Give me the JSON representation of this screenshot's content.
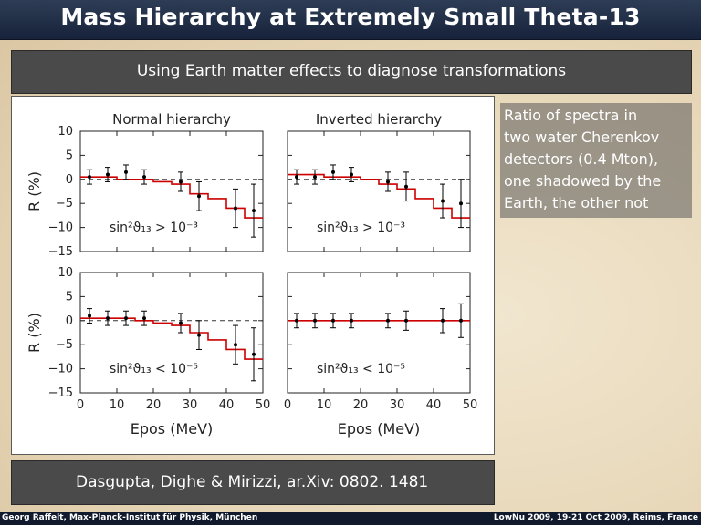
{
  "header": {
    "title": "Mass Hierarchy at Extremely Small Theta-13"
  },
  "subheader": {
    "text": "Using Earth matter effects to diagnose transformations"
  },
  "side_note": {
    "lines": [
      "Ratio of spectra in",
      "two water Cherenkov",
      "detectors (0.4 Mton),",
      "one shadowed by the",
      "Earth, the other not"
    ]
  },
  "citation": "Dasgupta, Dighe & Mirizzi, ar.Xiv: 0802. 1481",
  "footer": {
    "left": "Georg Raffelt, Max-Planck-Institut für Physik, München",
    "right": "LowNu 2009, 19-21 Oct 2009, Reims, France"
  },
  "colors": {
    "model": "#cc0000",
    "data": "#000000",
    "title_bar": "#1c2a44",
    "text_box": "#4a4a4a"
  },
  "chart_data": [
    {
      "type": "line",
      "title": "Normal hierarchy",
      "ylabel": "R (%)",
      "xlabel": "",
      "annotation": "sin²ϑ₁₃ > 10⁻³",
      "xlim": [
        0,
        50
      ],
      "ylim": [
        -15,
        10
      ],
      "xticks": [
        "0",
        "10",
        "20",
        "30",
        "40",
        "50"
      ],
      "yticks": [
        "10",
        "5",
        "0",
        "−5",
        "−10",
        "−15"
      ],
      "model": {
        "x": [
          0,
          5,
          10,
          15,
          20,
          25,
          30,
          35,
          40,
          45,
          50
        ],
        "y": [
          0.5,
          0.5,
          0,
          0,
          -0.5,
          -1,
          -3,
          -4,
          -6,
          -8,
          -8
        ]
      },
      "points": [
        {
          "x": 2.5,
          "y": 0.5,
          "err": 1.5
        },
        {
          "x": 7.5,
          "y": 1.0,
          "err": 1.5
        },
        {
          "x": 12.5,
          "y": 1.5,
          "err": 1.5
        },
        {
          "x": 17.5,
          "y": 0.5,
          "err": 1.5
        },
        {
          "x": 27.5,
          "y": -0.5,
          "err": 2.0
        },
        {
          "x": 32.5,
          "y": -3.5,
          "err": 3.0
        },
        {
          "x": 42.5,
          "y": -6.0,
          "err": 4.0
        },
        {
          "x": 47.5,
          "y": -6.5,
          "err": 5.5
        }
      ]
    },
    {
      "type": "line",
      "title": "Inverted hierarchy",
      "ylabel": "",
      "xlabel": "",
      "annotation": "sin²ϑ₁₃ > 10⁻³",
      "xlim": [
        0,
        50
      ],
      "ylim": [
        -15,
        10
      ],
      "xticks": [
        "0",
        "10",
        "20",
        "30",
        "40",
        "50"
      ],
      "yticks": [],
      "model": {
        "x": [
          0,
          5,
          10,
          15,
          20,
          25,
          30,
          35,
          40,
          45,
          50
        ],
        "y": [
          1,
          1,
          0.5,
          0.5,
          0,
          -1,
          -2,
          -4,
          -6,
          -8,
          -8
        ]
      },
      "points": [
        {
          "x": 2.5,
          "y": 0.5,
          "err": 1.5
        },
        {
          "x": 7.5,
          "y": 0.5,
          "err": 1.5
        },
        {
          "x": 12.5,
          "y": 1.5,
          "err": 1.5
        },
        {
          "x": 17.5,
          "y": 1.0,
          "err": 1.5
        },
        {
          "x": 27.5,
          "y": -0.5,
          "err": 2.0
        },
        {
          "x": 32.5,
          "y": -1.5,
          "err": 3.0
        },
        {
          "x": 42.5,
          "y": -4.5,
          "err": 3.5
        },
        {
          "x": 47.5,
          "y": -5.0,
          "err": 5.0
        }
      ]
    },
    {
      "type": "line",
      "title": "",
      "ylabel": "R (%)",
      "xlabel": "Epos (MeV)",
      "annotation": "sin²ϑ₁₃ < 10⁻⁵",
      "xlim": [
        0,
        50
      ],
      "ylim": [
        -15,
        10
      ],
      "xticks": [
        "0",
        "10",
        "20",
        "30",
        "40",
        "50"
      ],
      "yticks": [
        "10",
        "5",
        "0",
        "−5",
        "−10",
        "−15"
      ],
      "model": {
        "x": [
          0,
          5,
          10,
          15,
          20,
          25,
          30,
          35,
          40,
          45,
          50
        ],
        "y": [
          0.5,
          0.5,
          0.5,
          0,
          -0.5,
          -1,
          -2.5,
          -4,
          -6,
          -8,
          -8
        ]
      },
      "points": [
        {
          "x": 2.5,
          "y": 1.0,
          "err": 1.5
        },
        {
          "x": 7.5,
          "y": 0.5,
          "err": 1.5
        },
        {
          "x": 12.5,
          "y": 0.5,
          "err": 1.5
        },
        {
          "x": 17.5,
          "y": 0.5,
          "err": 1.5
        },
        {
          "x": 27.5,
          "y": -0.5,
          "err": 2.0
        },
        {
          "x": 32.5,
          "y": -3.0,
          "err": 3.0
        },
        {
          "x": 42.5,
          "y": -5.0,
          "err": 4.0
        },
        {
          "x": 47.5,
          "y": -7.0,
          "err": 5.5
        }
      ]
    },
    {
      "type": "line",
      "title": "",
      "ylabel": "",
      "xlabel": "Epos (MeV)",
      "annotation": "sin²ϑ₁₃ < 10⁻⁵",
      "xlim": [
        0,
        50
      ],
      "ylim": [
        -15,
        10
      ],
      "xticks": [
        "0",
        "10",
        "20",
        "30",
        "40",
        "50"
      ],
      "yticks": [],
      "model": {
        "x": [
          0,
          50
        ],
        "y": [
          0,
          0
        ]
      },
      "points": [
        {
          "x": 2.5,
          "y": 0.0,
          "err": 1.5
        },
        {
          "x": 7.5,
          "y": 0.0,
          "err": 1.5
        },
        {
          "x": 12.5,
          "y": 0.0,
          "err": 1.5
        },
        {
          "x": 17.5,
          "y": 0.0,
          "err": 1.5
        },
        {
          "x": 27.5,
          "y": 0.0,
          "err": 1.5
        },
        {
          "x": 32.5,
          "y": 0.0,
          "err": 2.0
        },
        {
          "x": 42.5,
          "y": 0.0,
          "err": 2.5
        },
        {
          "x": 47.5,
          "y": 0.0,
          "err": 3.5
        }
      ]
    }
  ]
}
